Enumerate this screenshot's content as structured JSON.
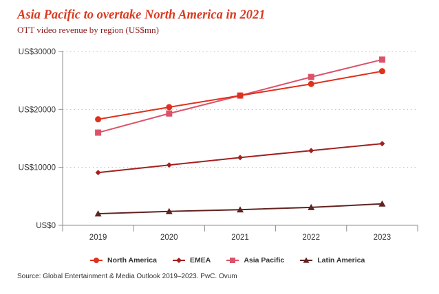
{
  "header": {
    "title": "Asia Pacific to overtake North America in 2021",
    "subtitle": "OTT video revenue by region (US$mn)"
  },
  "source": "Source: Global Entertainment & Media Outlook 2019–2023. PwC. Ovum",
  "chart_data": {
    "type": "line",
    "title": "Asia Pacific to overtake North America in 2021",
    "subtitle": "OTT video revenue by region (US$mn)",
    "xlabel": "",
    "ylabel": "",
    "categories": [
      "2019",
      "2020",
      "2021",
      "2022",
      "2023"
    ],
    "ylim": [
      0,
      30000
    ],
    "yticks": [
      0,
      10000,
      20000,
      30000
    ],
    "ytick_labels": [
      "US$0",
      "US$10000",
      "US$20000",
      "US$30000"
    ],
    "grid": "horizontal-dotted",
    "legend_position": "bottom",
    "series": [
      {
        "name": "North America",
        "marker": "circle",
        "color": "#e0301e",
        "values": [
          18300,
          20400,
          22400,
          24400,
          26600
        ]
      },
      {
        "name": "EMEA",
        "marker": "diamond",
        "color": "#a32020",
        "values": [
          9100,
          10400,
          11700,
          12900,
          14100
        ]
      },
      {
        "name": "Asia Pacific",
        "marker": "square",
        "color": "#db536a",
        "values": [
          16000,
          19300,
          22400,
          25600,
          28600
        ]
      },
      {
        "name": "Latin America",
        "marker": "triangle",
        "color": "#602320",
        "values": [
          2000,
          2400,
          2700,
          3100,
          3700
        ]
      }
    ]
  }
}
